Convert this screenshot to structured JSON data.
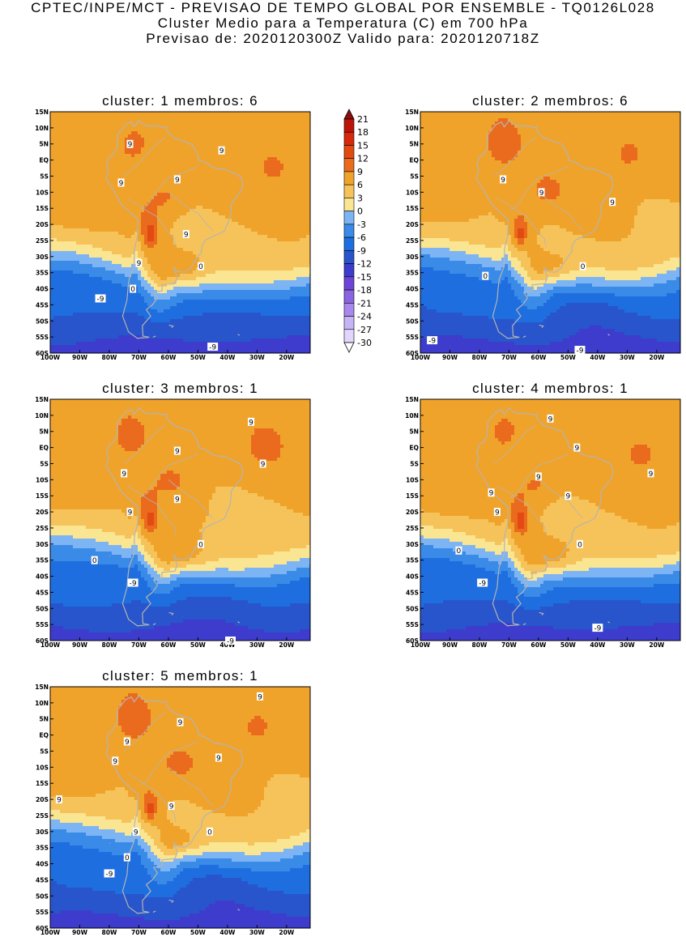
{
  "header": {
    "line1": "CPTEC/INPE/MCT - PREVISAO DE TEMPO GLOBAL POR ENSEMBLE - TQ0126L028",
    "line2": "Cluster Medio para a Temperatura (C) em 700 hPa",
    "line3": "Previsao de: 2020120300Z   Valido para: 2020120718Z"
  },
  "colors": {
    "band_bins": [
      -30,
      -27,
      -24,
      -21,
      -18,
      -15,
      -12,
      -9,
      -6,
      -3,
      0,
      3,
      6,
      9,
      12,
      15,
      18,
      21
    ],
    "band_colors": [
      "#ffffff",
      "#e2d6ff",
      "#c7b4f6",
      "#a888ec",
      "#8a63e0",
      "#6d45d6",
      "#3d3ccc",
      "#2855cc",
      "#1e6ee0",
      "#3a8ae8",
      "#7db4f4",
      "#fae592",
      "#f6c35a",
      "#f0a32b",
      "#eb6b1e",
      "#e24a12",
      "#d6280c",
      "#bc140a",
      "#8a0f0f"
    ],
    "land_outline": "#b4b4b4",
    "contour": "#000000"
  },
  "chart_data": {
    "type": "heatmap",
    "variable": "Temperatura (C) em 700 hPa",
    "colorbar": {
      "labels": [
        "21",
        "18",
        "15",
        "12",
        "9",
        "6",
        "3",
        "0",
        "-3",
        "-6",
        "-9",
        "-12",
        "-15",
        "-18",
        "-21",
        "-24",
        "-27",
        "-30"
      ],
      "levels": [
        21,
        18,
        15,
        12,
        9,
        6,
        3,
        0,
        -3,
        -6,
        -9,
        -12,
        -15,
        -18,
        -21,
        -24,
        -27,
        -30
      ]
    },
    "lat_ticks": [
      "15N",
      "10N",
      "5N",
      "EQ",
      "5S",
      "10S",
      "15S",
      "20S",
      "25S",
      "30S",
      "35S",
      "40S",
      "45S",
      "50S",
      "55S",
      "60S"
    ],
    "lat_values": [
      15,
      10,
      5,
      0,
      -5,
      -10,
      -15,
      -20,
      -25,
      -30,
      -35,
      -40,
      -45,
      -50,
      -55,
      -60
    ],
    "lon_ticks": [
      "100W",
      "90W",
      "80W",
      "70W",
      "60W",
      "50W",
      "40W",
      "30W",
      "20W"
    ],
    "lon_values": [
      -100,
      -90,
      -80,
      -70,
      -60,
      -50,
      -40,
      -30,
      -20
    ],
    "domain": {
      "lon_range": [
        -100,
        -12
      ],
      "lat_range": [
        -60,
        15
      ]
    },
    "contour_levels": [
      -9,
      0,
      9
    ],
    "panels": [
      {
        "title": "cluster: 1   membros: 6",
        "labels": [
          {
            "text": "9",
            "lon": -73,
            "lat": 5
          },
          {
            "text": "9",
            "lon": -42,
            "lat": 3
          },
          {
            "text": "9",
            "lon": -76,
            "lat": -7
          },
          {
            "text": "9",
            "lon": -57,
            "lat": -6
          },
          {
            "text": "9",
            "lon": -54,
            "lat": -23
          },
          {
            "text": "9",
            "lon": -70,
            "lat": -32
          },
          {
            "text": "0",
            "lon": -72,
            "lat": -40
          },
          {
            "text": "0",
            "lon": -49,
            "lat": -33
          },
          {
            "text": "-9",
            "lon": -83,
            "lat": -43
          },
          {
            "text": "-9",
            "lon": -45,
            "lat": -58
          }
        ]
      },
      {
        "title": "cluster: 2   membros: 6",
        "labels": [
          {
            "text": "9",
            "lon": -72,
            "lat": -6
          },
          {
            "text": "9",
            "lon": -59,
            "lat": -10
          },
          {
            "text": "9",
            "lon": -35,
            "lat": -13
          },
          {
            "text": "0",
            "lon": -45,
            "lat": -33
          },
          {
            "text": "0",
            "lon": -78,
            "lat": -36
          },
          {
            "text": "-9",
            "lon": -96,
            "lat": -56
          },
          {
            "text": "-9",
            "lon": -46,
            "lat": -59
          }
        ]
      },
      {
        "title": "cluster: 3   membros: 1",
        "labels": [
          {
            "text": "9",
            "lon": -32,
            "lat": 8
          },
          {
            "text": "9",
            "lon": -57,
            "lat": -1
          },
          {
            "text": "9",
            "lon": -28,
            "lat": -5
          },
          {
            "text": "9",
            "lon": -75,
            "lat": -8
          },
          {
            "text": "9",
            "lon": -57,
            "lat": -16
          },
          {
            "text": "9",
            "lon": -73,
            "lat": -20
          },
          {
            "text": "0",
            "lon": -49,
            "lat": -30
          },
          {
            "text": "0",
            "lon": -85,
            "lat": -35
          },
          {
            "text": "-9",
            "lon": -72,
            "lat": -42
          },
          {
            "text": "-9",
            "lon": -39,
            "lat": -60
          }
        ]
      },
      {
        "title": "cluster: 4   membros: 1",
        "labels": [
          {
            "text": "9",
            "lon": -56,
            "lat": 9
          },
          {
            "text": "9",
            "lon": -47,
            "lat": 0
          },
          {
            "text": "9",
            "lon": -60,
            "lat": -9
          },
          {
            "text": "9",
            "lon": -50,
            "lat": -15
          },
          {
            "text": "9",
            "lon": -22,
            "lat": -8
          },
          {
            "text": "9",
            "lon": -76,
            "lat": -14
          },
          {
            "text": "9",
            "lon": -74,
            "lat": -20
          },
          {
            "text": "0",
            "lon": -46,
            "lat": -30
          },
          {
            "text": "0",
            "lon": -87,
            "lat": -32
          },
          {
            "text": "-9",
            "lon": -79,
            "lat": -42
          },
          {
            "text": "-9",
            "lon": -40,
            "lat": -56
          }
        ]
      },
      {
        "title": "cluster: 5   membros: 1",
        "labels": [
          {
            "text": "9",
            "lon": -29,
            "lat": 12
          },
          {
            "text": "9",
            "lon": -56,
            "lat": 4
          },
          {
            "text": "9",
            "lon": -74,
            "lat": -2
          },
          {
            "text": "9",
            "lon": -43,
            "lat": -7
          },
          {
            "text": "9",
            "lon": -78,
            "lat": -8
          },
          {
            "text": "9",
            "lon": -97,
            "lat": -20
          },
          {
            "text": "9",
            "lon": -59,
            "lat": -22
          },
          {
            "text": "9",
            "lon": -71,
            "lat": -30
          },
          {
            "text": "0",
            "lon": -74,
            "lat": -38
          },
          {
            "text": "0",
            "lon": -46,
            "lat": -30
          },
          {
            "text": "-9",
            "lon": -80,
            "lat": -43
          }
        ]
      }
    ]
  }
}
